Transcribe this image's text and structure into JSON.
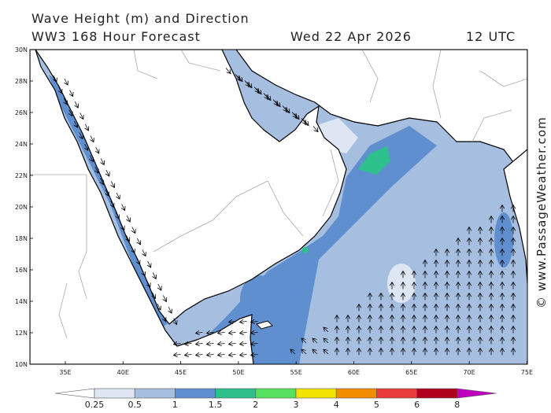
{
  "header": {
    "title": "Wave Height (m) and Direction",
    "model": "WW3 168 Hour Forecast",
    "date": "Wed 22 Apr 2026",
    "time": "12 UTC"
  },
  "map": {
    "lat_ticks": [
      "30N",
      "28N",
      "26N",
      "24N",
      "22N",
      "20N",
      "18N",
      "16N",
      "14N",
      "12N",
      "10N"
    ],
    "lon_ticks": [
      "35E",
      "40E",
      "45E",
      "50E",
      "55E",
      "60E",
      "65E",
      "70E",
      "75E"
    ],
    "colors": {
      "land": "#ffffff",
      "wave_0_25": "#dde6f2",
      "wave_0_5": "#a6bfe0",
      "wave_1": "#5f8fcf",
      "wave_1_5": "#2ec08c",
      "border": "#aaaaaa",
      "coast": "#000000"
    }
  },
  "colorbar": {
    "labels": [
      "0.25",
      "0.5",
      "1",
      "1.5",
      "2",
      "3",
      "4",
      "5",
      "6",
      "8"
    ],
    "colors": [
      "#dde6f2",
      "#a6bfe0",
      "#5f8fcf",
      "#2ec08c",
      "#55e060",
      "#f2e400",
      "#f28c00",
      "#e83c3c",
      "#b00020",
      "#c000c0"
    ]
  },
  "credit": "© www.PassageWeather.com"
}
